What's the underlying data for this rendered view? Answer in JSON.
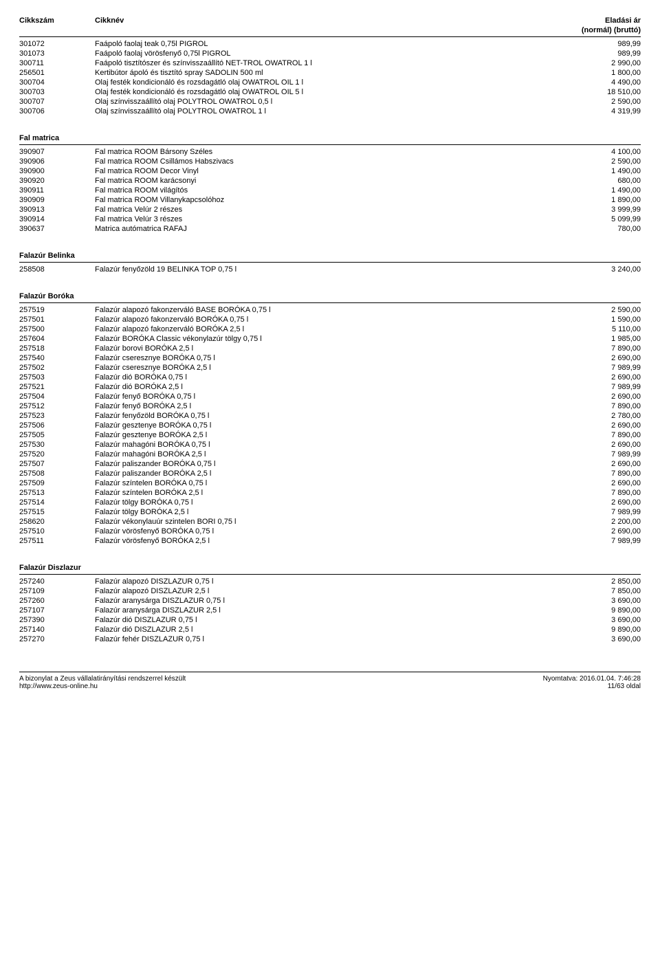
{
  "header": {
    "code": "Cikkszám",
    "name": "Cikknév",
    "price": "Eladási ár",
    "price_sub": "(normál) (bruttó)"
  },
  "sections": [
    {
      "title": null,
      "rows": [
        {
          "code": "301072",
          "name": "Faápoló faolaj teak 0,75l PIGROL",
          "price": "989,99"
        },
        {
          "code": "301073",
          "name": "Faápoló faolaj vörösfenyő 0,75l PIGROL",
          "price": "989,99"
        },
        {
          "code": "300711",
          "name": "Faápoló tisztítószer és színvisszaállító NET-TROL OWATROL 1 l",
          "price": "2 990,00"
        },
        {
          "code": "256501",
          "name": "Kertibútor ápoló és tisztító spray SADOLIN 500 ml",
          "price": "1 800,00"
        },
        {
          "code": "300704",
          "name": "Olaj festék kondicionáló és rozsdagátló olaj OWATROL OIL 1 l",
          "price": "4 490,00"
        },
        {
          "code": "300703",
          "name": "Olaj festék kondicionáló és rozsdagátló olaj OWATROL OIL 5 l",
          "price": "18 510,00"
        },
        {
          "code": "300707",
          "name": "Olaj színvisszaállító olaj POLYTROL OWATROL 0,5 l",
          "price": "2 590,00"
        },
        {
          "code": "300706",
          "name": "Olaj színvisszaállító olaj POLYTROL OWATROL 1 l",
          "price": "4 319,99"
        }
      ]
    },
    {
      "title": "Fal matrica",
      "rows": [
        {
          "code": "390907",
          "name": "Fal matrica ROOM Bársony Széles",
          "price": "4 100,00"
        },
        {
          "code": "390906",
          "name": "Fal matrica ROOM Csillámos Habszivacs",
          "price": "2 590,00"
        },
        {
          "code": "390900",
          "name": "Fal matrica ROOM Decor Vinyl",
          "price": "1 490,00"
        },
        {
          "code": "390920",
          "name": "Fal matrica ROOM karácsonyi",
          "price": "680,00"
        },
        {
          "code": "390911",
          "name": "Fal matrica ROOM világítós",
          "price": "1 490,00"
        },
        {
          "code": "390909",
          "name": "Fal matrica ROOM Villanykapcsolóhoz",
          "price": "1 890,00"
        },
        {
          "code": "390913",
          "name": "Fal matrica Velúr 2 részes",
          "price": "3 999,99"
        },
        {
          "code": "390914",
          "name": "Fal matrica Velúr 3 részes",
          "price": "5 099,99"
        },
        {
          "code": "390637",
          "name": "Matrica autómatrica RAFAJ",
          "price": "780,00"
        }
      ]
    },
    {
      "title": "Falazúr Belinka",
      "rows": [
        {
          "code": "258508",
          "name": "Falazúr fenyőzöld 19 BELINKA TOP 0,75 l",
          "price": "3 240,00"
        }
      ]
    },
    {
      "title": "Falazúr Boróka",
      "rows": [
        {
          "code": "257519",
          "name": "Falazúr alapozó fakonzerváló BASE BORÓKA 0,75 l",
          "price": "2 590,00"
        },
        {
          "code": "257501",
          "name": "Falazúr alapozó fakonzerváló BORÓKA 0,75 l",
          "price": "1 590,00"
        },
        {
          "code": "257500",
          "name": "Falazúr alapozó fakonzerváló BORÓKA 2,5 l",
          "price": "5 110,00"
        },
        {
          "code": "257604",
          "name": "Falazúr BORÓKA Classic vékonylazúr tölgy 0,75 l",
          "price": "1 985,00"
        },
        {
          "code": "257518",
          "name": "Falazúr borovi BORÓKA 2,5 l",
          "price": "7 890,00"
        },
        {
          "code": "257540",
          "name": "Falazúr cseresznye BORÓKA 0,75 l",
          "price": "2 690,00"
        },
        {
          "code": "257502",
          "name": "Falazúr cseresznye BORÓKA 2,5 l",
          "price": "7 989,99"
        },
        {
          "code": "257503",
          "name": "Falazúr dió BORÓKA 0,75 l",
          "price": "2 690,00"
        },
        {
          "code": "257521",
          "name": "Falazúr dió BORÓKA 2,5 l",
          "price": "7 989,99"
        },
        {
          "code": "257504",
          "name": "Falazúr fenyő BORÓKA 0,75 l",
          "price": "2 690,00"
        },
        {
          "code": "257512",
          "name": "Falazúr fenyő BORÓKA 2,5 l",
          "price": "7 890,00"
        },
        {
          "code": "257523",
          "name": "Falazúr fenyőzöld BORÓKA 0,75 l",
          "price": "2 780,00"
        },
        {
          "code": "257506",
          "name": "Falazúr gesztenye BORÓKA 0,75 l",
          "price": "2 690,00"
        },
        {
          "code": "257505",
          "name": "Falazúr gesztenye BORÓKA 2,5 l",
          "price": "7 890,00"
        },
        {
          "code": "257530",
          "name": "Falazúr mahagóni BORÓKA 0,75 l",
          "price": "2 690,00"
        },
        {
          "code": "257520",
          "name": "Falazúr mahagóni BORÓKA 2,5 l",
          "price": "7 989,99"
        },
        {
          "code": "257507",
          "name": "Falazúr paliszander BORÓKA 0,75 l",
          "price": "2 690,00"
        },
        {
          "code": "257508",
          "name": "Falazúr paliszander BORÓKA 2,5 l",
          "price": "7 890,00"
        },
        {
          "code": "257509",
          "name": "Falazúr színtelen BORÓKA 0,75 l",
          "price": "2 690,00"
        },
        {
          "code": "257513",
          "name": "Falazúr színtelen BORÓKA 2,5 l",
          "price": "7 890,00"
        },
        {
          "code": "257514",
          "name": "Falazúr tölgy BORÓKA 0,75 l",
          "price": "2 690,00"
        },
        {
          "code": "257515",
          "name": "Falazúr tölgy BORÓKA 2,5 l",
          "price": "7 989,99"
        },
        {
          "code": "258620",
          "name": "Falazúr vékonylauúr szintelen BORI 0,75 l",
          "price": "2 200,00"
        },
        {
          "code": "257510",
          "name": "Falazúr vörösfenyő BORÓKA 0,75 l",
          "price": "2 690,00"
        },
        {
          "code": "257511",
          "name": "Falazúr vörösfenyő BORÓKA 2,5 l",
          "price": "7 989,99"
        }
      ]
    },
    {
      "title": "Falazúr Diszlazur",
      "rows": [
        {
          "code": "257240",
          "name": "Falazúr alapozó DISZLAZUR 0,75 l",
          "price": "2 850,00"
        },
        {
          "code": "257109",
          "name": "Falazúr alapozó DISZLAZUR 2,5 l",
          "price": "7 850,00"
        },
        {
          "code": "257260",
          "name": "Falazúr aranysárga DISZLAZUR 0,75 l",
          "price": "3 690,00"
        },
        {
          "code": "257107",
          "name": "Falazúr aranysárga DISZLAZUR 2,5 l",
          "price": "9 890,00"
        },
        {
          "code": "257390",
          "name": "Falazúr dió DISZLAZUR 0,75 l",
          "price": "3 690,00"
        },
        {
          "code": "257140",
          "name": "Falazúr dió DISZLAZUR 2,5 l",
          "price": "9 890,00"
        },
        {
          "code": "257270",
          "name": "Falazúr fehér DISZLAZUR 0,75 l",
          "price": "3 690,00"
        }
      ]
    }
  ],
  "footer": {
    "left1": "A bizonylat a Zeus vállalatirányítási rendszerrel készült",
    "left2": "http://www.zeus-online.hu",
    "right1": "Nyomtatva:  2016.01.04.   7:46:28",
    "right2": "11/63 oldal"
  }
}
